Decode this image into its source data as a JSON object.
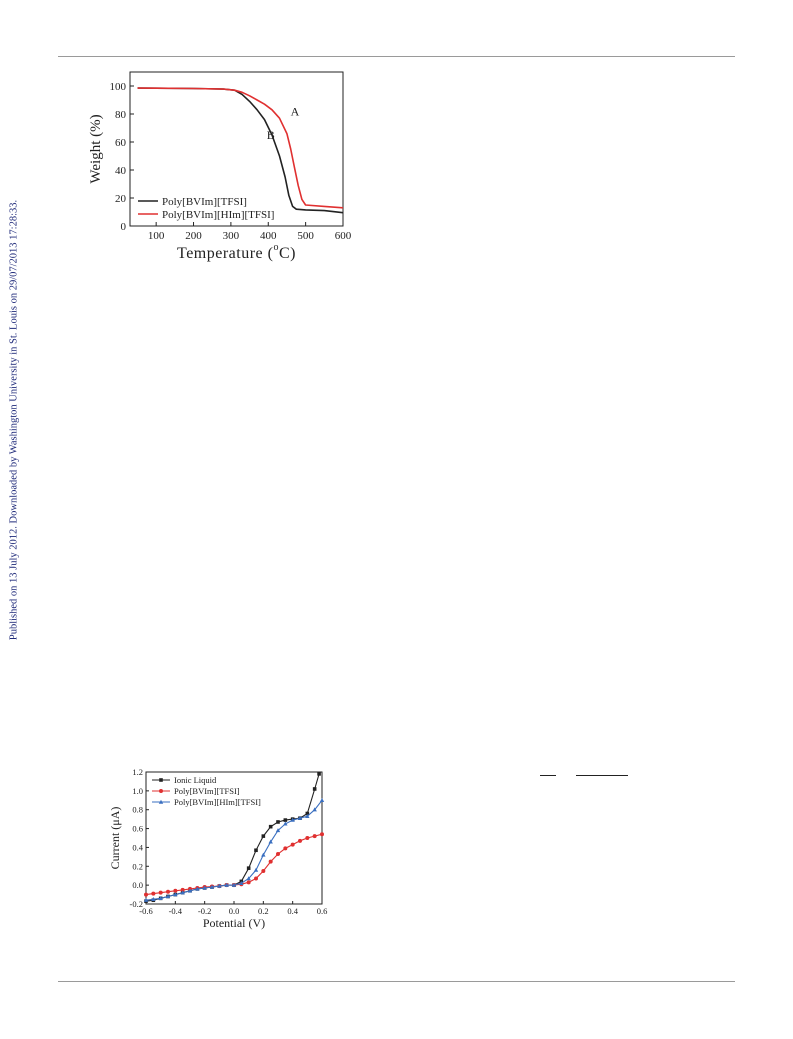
{
  "side_note": "Published on 13 July 2012. Downloaded by Washington University in St. Louis on 29/07/2013 17:28:33.",
  "chart_data": [
    {
      "type": "line",
      "xlabel": "Temperature (°C)",
      "xlabel_main": "Temperature (",
      "xlabel_sup": "o",
      "xlabel_end": "C)",
      "ylabel": "Weight (%)",
      "xlim": [
        30,
        600
      ],
      "ylim": [
        0,
        110
      ],
      "xticks": [
        "100",
        "200",
        "300",
        "400",
        "500",
        "600"
      ],
      "yticks": [
        "0",
        "20",
        "40",
        "60",
        "80",
        "100"
      ],
      "legend_position": "bottom-left",
      "annotations": [
        {
          "text": "A",
          "x": 460,
          "y": 79
        },
        {
          "text": "B",
          "x": 396,
          "y": 62
        }
      ],
      "series": [
        {
          "name": "Poly[BVIm][TFSI]",
          "color": "#222222",
          "x": [
            50,
            100,
            200,
            280,
            310,
            330,
            350,
            370,
            390,
            410,
            430,
            445,
            455,
            465,
            475,
            500,
            550,
            600
          ],
          "y": [
            98.5,
            98.4,
            98.2,
            97.8,
            97,
            94,
            89,
            83,
            76,
            65,
            50,
            35,
            22,
            14,
            12,
            11.5,
            11,
            9.5
          ]
        },
        {
          "name": "Poly[BVIm][HIm][TFSI]",
          "color": "#e03030",
          "x": [
            50,
            100,
            200,
            280,
            310,
            330,
            350,
            370,
            390,
            410,
            430,
            450,
            460,
            470,
            480,
            490,
            500,
            550,
            600
          ],
          "y": [
            98.5,
            98.4,
            98.2,
            97.8,
            97,
            95.5,
            93,
            90,
            87,
            83,
            77,
            66,
            55,
            42,
            29,
            19,
            15,
            14,
            13
          ]
        }
      ]
    },
    {
      "type": "line",
      "xlabel": "Potential (V)",
      "ylabel": "Current (μA)",
      "xlim": [
        -0.6,
        0.6
      ],
      "ylim": [
        -0.2,
        1.2
      ],
      "xticks": [
        "-0.6",
        "-0.4",
        "-0.2",
        "0.0",
        "0.2",
        "0.4",
        "0.6"
      ],
      "yticks": [
        "-0.2",
        "0.0",
        "0.2",
        "0.4",
        "0.6",
        "0.8",
        "1.0",
        "1.2"
      ],
      "legend_position": "top-left",
      "series": [
        {
          "name": "Ionic Liquid",
          "color": "#222222",
          "marker": "square",
          "x": [
            -0.6,
            -0.55,
            -0.5,
            -0.45,
            -0.4,
            -0.35,
            -0.3,
            -0.25,
            -0.2,
            -0.15,
            -0.1,
            -0.05,
            0.0,
            0.05,
            0.1,
            0.15,
            0.2,
            0.25,
            0.3,
            0.35,
            0.4,
            0.45,
            0.5,
            0.55,
            0.58
          ],
          "y": [
            -0.17,
            -0.16,
            -0.14,
            -0.12,
            -0.1,
            -0.08,
            -0.06,
            -0.04,
            -0.03,
            -0.02,
            -0.01,
            0.0,
            0.0,
            0.04,
            0.18,
            0.37,
            0.52,
            0.62,
            0.67,
            0.69,
            0.7,
            0.71,
            0.76,
            1.02,
            1.18
          ]
        },
        {
          "name": "Poly[BVIm][TFSI]",
          "color": "#e03030",
          "marker": "circle",
          "x": [
            -0.6,
            -0.55,
            -0.5,
            -0.45,
            -0.4,
            -0.35,
            -0.3,
            -0.25,
            -0.2,
            -0.15,
            -0.1,
            -0.05,
            0.0,
            0.05,
            0.1,
            0.15,
            0.2,
            0.25,
            0.3,
            0.35,
            0.4,
            0.45,
            0.5,
            0.55,
            0.6
          ],
          "y": [
            -0.1,
            -0.09,
            -0.08,
            -0.07,
            -0.06,
            -0.05,
            -0.04,
            -0.03,
            -0.02,
            -0.015,
            -0.01,
            0.0,
            0.0,
            0.01,
            0.03,
            0.07,
            0.15,
            0.25,
            0.33,
            0.39,
            0.43,
            0.47,
            0.5,
            0.52,
            0.54
          ]
        },
        {
          "name": "Poly[BVIm][HIm][TFSI]",
          "color": "#3a6fc0",
          "marker": "triangle",
          "x": [
            -0.6,
            -0.55,
            -0.5,
            -0.45,
            -0.4,
            -0.35,
            -0.3,
            -0.25,
            -0.2,
            -0.15,
            -0.1,
            -0.05,
            0.0,
            0.05,
            0.1,
            0.15,
            0.2,
            0.25,
            0.3,
            0.35,
            0.4,
            0.45,
            0.5,
            0.55,
            0.6
          ],
          "y": [
            -0.16,
            -0.15,
            -0.14,
            -0.12,
            -0.1,
            -0.08,
            -0.06,
            -0.04,
            -0.03,
            -0.02,
            -0.01,
            0.0,
            0.0,
            0.02,
            0.07,
            0.16,
            0.32,
            0.46,
            0.58,
            0.65,
            0.69,
            0.71,
            0.73,
            0.8,
            0.9
          ]
        }
      ]
    }
  ]
}
